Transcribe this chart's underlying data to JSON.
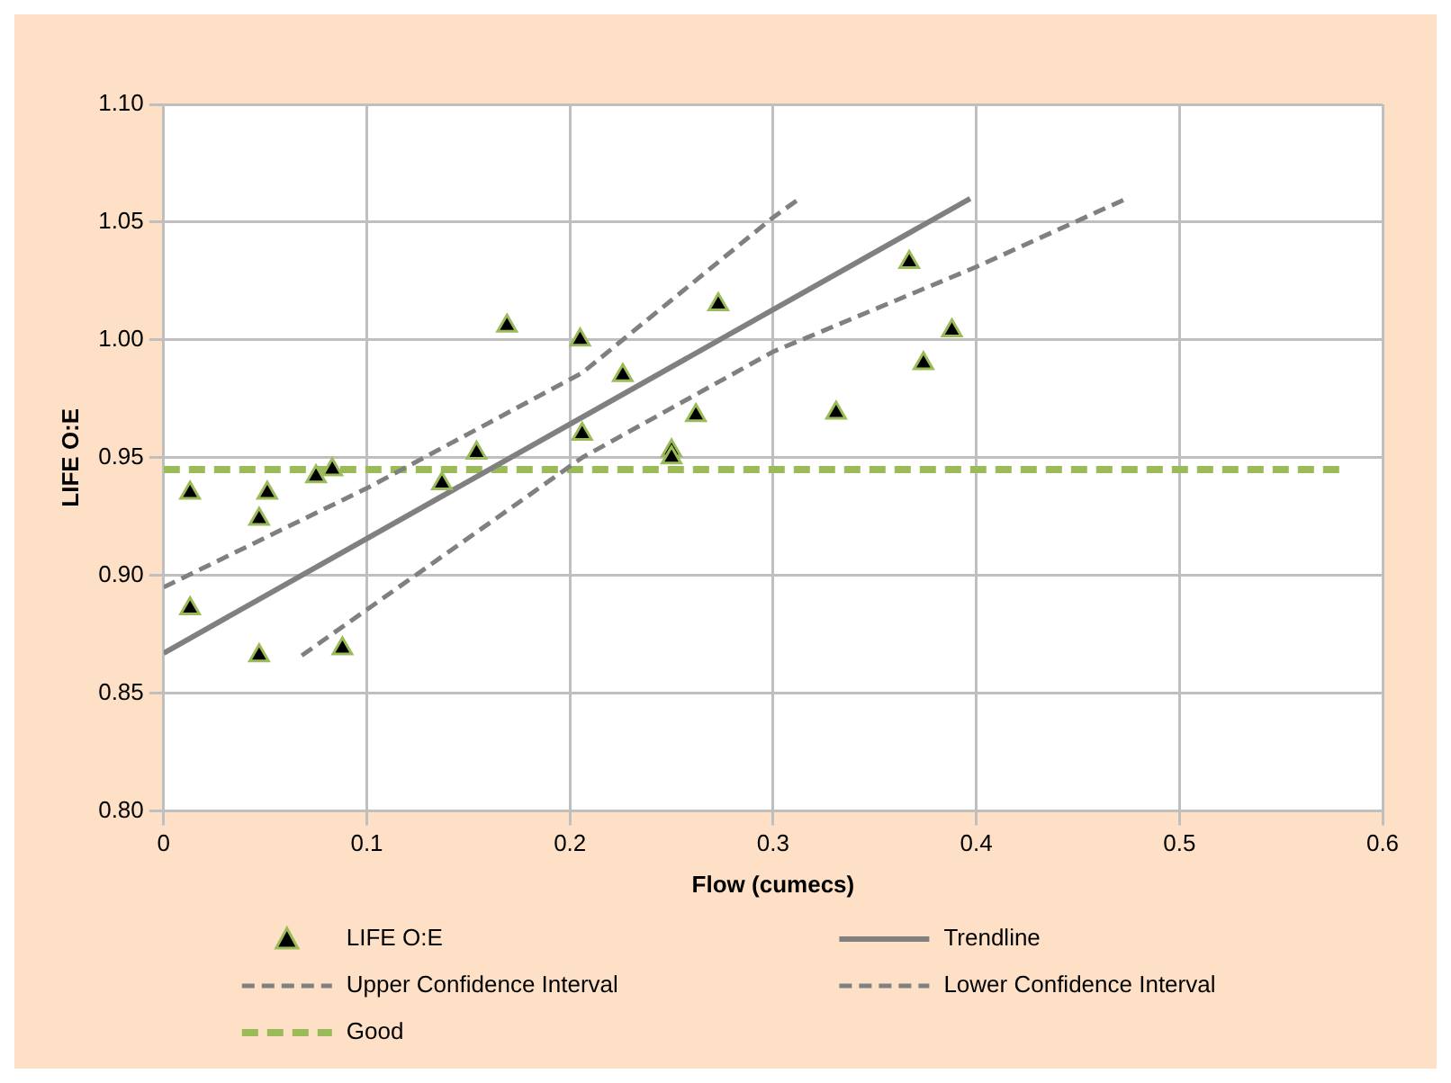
{
  "chart_data": {
    "type": "scatter",
    "xlabel": "Flow (cumecs)",
    "ylabel": "LIFE O:E",
    "xlim": [
      0,
      0.6
    ],
    "xticks": [
      0,
      0.1,
      0.2,
      0.3,
      0.4,
      0.5,
      0.6
    ],
    "ylim": [
      0.8,
      1.1
    ],
    "yticks": [
      {
        "value": 0.8,
        "label": "0.80"
      },
      0.85,
      {
        "value": 0.9,
        "label": "0.90"
      },
      0.95,
      {
        "value": 1,
        "label": "1.00"
      },
      1.05,
      {
        "value": 1.1,
        "label": "1.10"
      }
    ],
    "grid": true,
    "legend": "bottom",
    "series": [
      {
        "name": "LIFE O:E",
        "type": "scatter",
        "marker": "triangle",
        "color": "#000000",
        "x": [
          0.013,
          0.051,
          0.047,
          0.075,
          0.083,
          0.013,
          0.047,
          0.088,
          0.137,
          0.154,
          0.169,
          0.205,
          0.226,
          0.206,
          0.25,
          0.25,
          0.262,
          0.273,
          0.331,
          0.367,
          0.374,
          0.388
        ],
        "values": [
          0.935,
          0.935,
          0.924,
          0.942,
          0.945,
          0.886,
          0.866,
          0.869,
          0.939,
          0.952,
          1.006,
          1.0,
          0.985,
          0.96,
          0.953,
          0.95,
          0.968,
          1.015,
          0.969,
          1.033,
          0.99,
          1.004
        ]
      },
      {
        "name": "Trendline",
        "type": "line",
        "line_style": "solid",
        "marker": "none",
        "color": "#808080",
        "x": [
          0,
          0.397
        ],
        "values": [
          0.867,
          1.06
        ]
      },
      {
        "name": "Upper Confidence Interval",
        "type": "line",
        "line_style": "dashed",
        "marker": "none",
        "color": "#808080",
        "x": [
          0,
          0.1,
          0.206,
          0.3,
          0.313
        ],
        "values": [
          0.895,
          0.937,
          0.986,
          1.052,
          1.06
        ]
      },
      {
        "name": "Lower Confidence Interval",
        "type": "line",
        "line_style": "dashed",
        "marker": "none",
        "color": "#808080",
        "x": [
          0.068,
          0.206,
          0.3,
          0.4,
          0.474
        ],
        "values": [
          0.866,
          0.95,
          0.995,
          1.031,
          1.06
        ]
      },
      {
        "name": "Good",
        "type": "line",
        "line_style": "dashed",
        "marker": "none",
        "color": "#9bbb59",
        "x": [
          0,
          0.58
        ],
        "values": [
          0.945,
          0.945
        ]
      }
    ]
  }
}
